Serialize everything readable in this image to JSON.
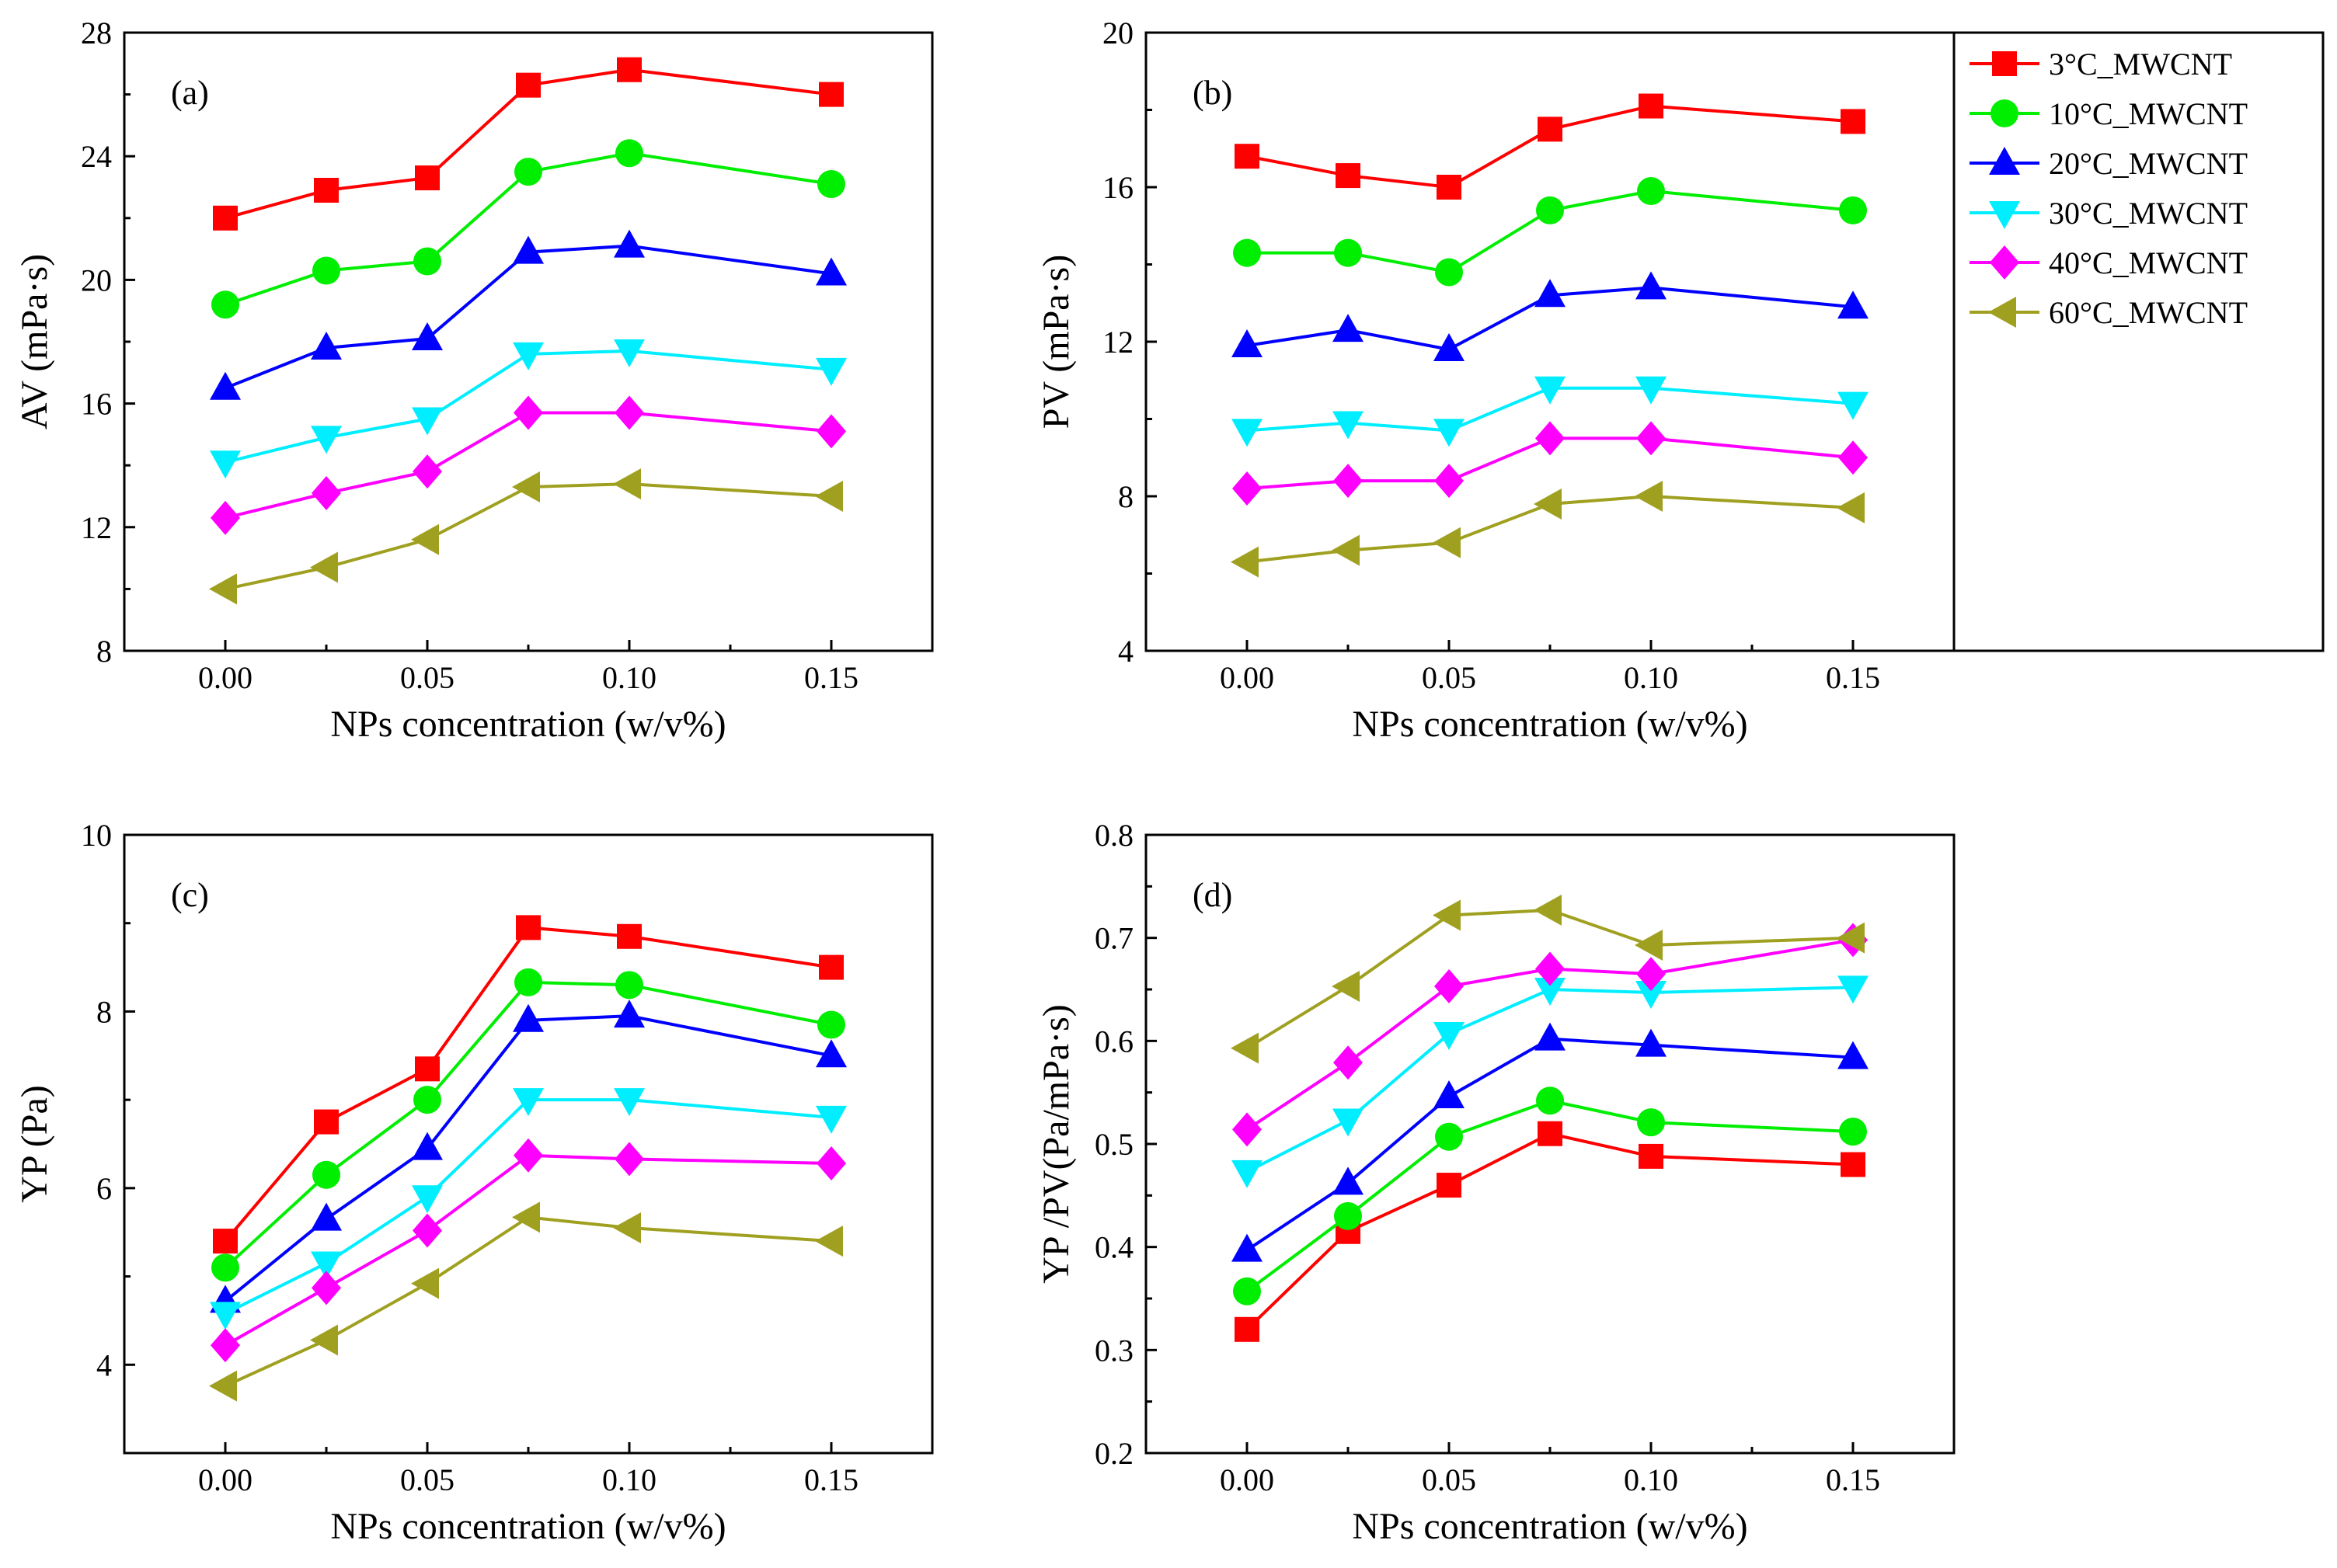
{
  "chart_data": [
    {
      "type": "line",
      "label": "(a)",
      "xlabel": "NPs concentration (w/v%)",
      "ylabel": "AV (mPa·s)",
      "x": [
        0,
        0.025,
        0.05,
        0.075,
        0.1,
        0.15
      ],
      "xticks": [
        0,
        0.05,
        0.1,
        0.15
      ],
      "xtick_labels": [
        "0.00",
        "0.05",
        "0.10",
        "0.15"
      ],
      "xlim": [
        -0.025,
        0.175
      ],
      "ylim": [
        8,
        28
      ],
      "yticks": [
        8,
        12,
        16,
        20,
        24,
        28
      ],
      "ytick_labels": [
        "8",
        "12",
        "16",
        "20",
        "24",
        "28"
      ],
      "series": [
        {
          "name": "3°C_MWCNT",
          "values": [
            22.0,
            22.9,
            23.3,
            26.3,
            26.8,
            26.0
          ]
        },
        {
          "name": "10°C_MWCNT",
          "values": [
            19.2,
            20.3,
            20.6,
            23.5,
            24.1,
            23.1
          ]
        },
        {
          "name": "20°C_MWCNT",
          "values": [
            16.5,
            17.8,
            18.1,
            20.9,
            21.1,
            20.2
          ]
        },
        {
          "name": "30°C_MWCNT",
          "values": [
            14.1,
            14.9,
            15.5,
            17.6,
            17.7,
            17.1
          ]
        },
        {
          "name": "40°C_MWCNT",
          "values": [
            12.3,
            13.1,
            13.8,
            15.7,
            15.7,
            15.1
          ]
        },
        {
          "name": "60°C_MWCNT",
          "values": [
            10.0,
            10.7,
            11.6,
            13.3,
            13.4,
            13.0
          ]
        }
      ]
    },
    {
      "type": "line",
      "label": "(b)",
      "xlabel": "NPs concentration (w/v%)",
      "ylabel": "PV (mPa·s)",
      "x": [
        0,
        0.025,
        0.05,
        0.075,
        0.1,
        0.15
      ],
      "xticks": [
        0,
        0.05,
        0.1,
        0.15
      ],
      "xtick_labels": [
        "0.00",
        "0.05",
        "0.10",
        "0.15"
      ],
      "xlim": [
        -0.025,
        0.175
      ],
      "ylim": [
        4,
        20
      ],
      "yticks": [
        4,
        8,
        12,
        16,
        20
      ],
      "ytick_labels": [
        "4",
        "8",
        "12",
        "16",
        "20"
      ],
      "series": [
        {
          "name": "3°C_MWCNT",
          "values": [
            16.8,
            16.3,
            16.0,
            17.5,
            18.1,
            17.7
          ]
        },
        {
          "name": "10°C_MWCNT",
          "values": [
            14.3,
            14.3,
            13.8,
            15.4,
            15.9,
            15.4
          ]
        },
        {
          "name": "20°C_MWCNT",
          "values": [
            11.9,
            12.3,
            11.8,
            13.2,
            13.4,
            12.9
          ]
        },
        {
          "name": "30°C_MWCNT",
          "values": [
            9.7,
            9.9,
            9.7,
            10.8,
            10.8,
            10.4
          ]
        },
        {
          "name": "40°C_MWCNT",
          "values": [
            8.2,
            8.4,
            8.4,
            9.5,
            9.5,
            9.0
          ]
        },
        {
          "name": "60°C_MWCNT",
          "values": [
            6.3,
            6.6,
            6.8,
            7.8,
            8.0,
            7.7
          ]
        }
      ]
    },
    {
      "type": "line",
      "label": "(c)",
      "xlabel": "NPs concentration (w/v%)",
      "ylabel": "YP (Pa)",
      "x": [
        0,
        0.025,
        0.05,
        0.075,
        0.1,
        0.15
      ],
      "xticks": [
        0,
        0.05,
        0.1,
        0.15
      ],
      "xtick_labels": [
        "0.00",
        "0.05",
        "0.10",
        "0.15"
      ],
      "xlim": [
        -0.025,
        0.175
      ],
      "ylim": [
        3,
        10
      ],
      "yticks": [
        4,
        6,
        8,
        10
      ],
      "ytick_labels": [
        "4",
        "6",
        "8",
        "10"
      ],
      "series": [
        {
          "name": "3°C_MWCNT",
          "values": [
            5.4,
            6.75,
            7.35,
            8.95,
            8.85,
            8.5
          ]
        },
        {
          "name": "10°C_MWCNT",
          "values": [
            5.1,
            6.15,
            7.0,
            8.33,
            8.3,
            7.85
          ]
        },
        {
          "name": "20°C_MWCNT",
          "values": [
            4.72,
            5.65,
            6.45,
            7.9,
            7.95,
            7.5
          ]
        },
        {
          "name": "30°C_MWCNT",
          "values": [
            4.58,
            5.15,
            5.9,
            7.0,
            7.0,
            6.8
          ]
        },
        {
          "name": "40°C_MWCNT",
          "values": [
            4.22,
            4.87,
            5.52,
            6.37,
            6.33,
            6.28
          ]
        },
        {
          "name": "60°C_MWCNT",
          "values": [
            3.76,
            4.28,
            4.92,
            5.67,
            5.55,
            5.4
          ]
        }
      ]
    },
    {
      "type": "line",
      "label": "(d)",
      "xlabel": "NPs concentration (w/v%)",
      "ylabel": "YP /PV(Pa/mPa·s)",
      "x": [
        0,
        0.025,
        0.05,
        0.075,
        0.1,
        0.15
      ],
      "xticks": [
        0,
        0.05,
        0.1,
        0.15
      ],
      "xtick_labels": [
        "0.00",
        "0.05",
        "0.10",
        "0.15"
      ],
      "xlim": [
        -0.025,
        0.175
      ],
      "ylim": [
        0.2,
        0.8
      ],
      "yticks": [
        0.2,
        0.3,
        0.4,
        0.5,
        0.6,
        0.7,
        0.8
      ],
      "ytick_labels": [
        "0.2",
        "0.3",
        "0.4",
        "0.5",
        "0.6",
        "0.7",
        "0.8"
      ],
      "series": [
        {
          "name": "3°C_MWCNT",
          "values": [
            0.32,
            0.415,
            0.46,
            0.51,
            0.488,
            0.48
          ]
        },
        {
          "name": "10°C_MWCNT",
          "values": [
            0.357,
            0.43,
            0.507,
            0.542,
            0.521,
            0.512
          ]
        },
        {
          "name": "20°C_MWCNT",
          "values": [
            0.397,
            0.462,
            0.546,
            0.602,
            0.596,
            0.584
          ]
        },
        {
          "name": "30°C_MWCNT",
          "values": [
            0.473,
            0.523,
            0.607,
            0.65,
            0.647,
            0.652
          ]
        },
        {
          "name": "40°C_MWCNT",
          "values": [
            0.514,
            0.579,
            0.653,
            0.67,
            0.665,
            0.698
          ]
        },
        {
          "name": "60°C_MWCNT",
          "values": [
            0.593,
            0.653,
            0.722,
            0.727,
            0.693,
            0.7
          ]
        }
      ]
    }
  ],
  "legend": {
    "entries": [
      {
        "name": "3°C_MWCNT",
        "color": "#ff0000",
        "marker": "square"
      },
      {
        "name": "10°C_MWCNT",
        "color": "#00ee00",
        "marker": "circle"
      },
      {
        "name": "20°C_MWCNT",
        "color": "#0000ff",
        "marker": "triangle-up"
      },
      {
        "name": "30°C_MWCNT",
        "color": "#00eeff",
        "marker": "triangle-down"
      },
      {
        "name": "40°C_MWCNT",
        "color": "#ff00ff",
        "marker": "diamond"
      },
      {
        "name": "60°C_MWCNT",
        "color": "#a0a020",
        "marker": "triangle-left"
      }
    ]
  }
}
